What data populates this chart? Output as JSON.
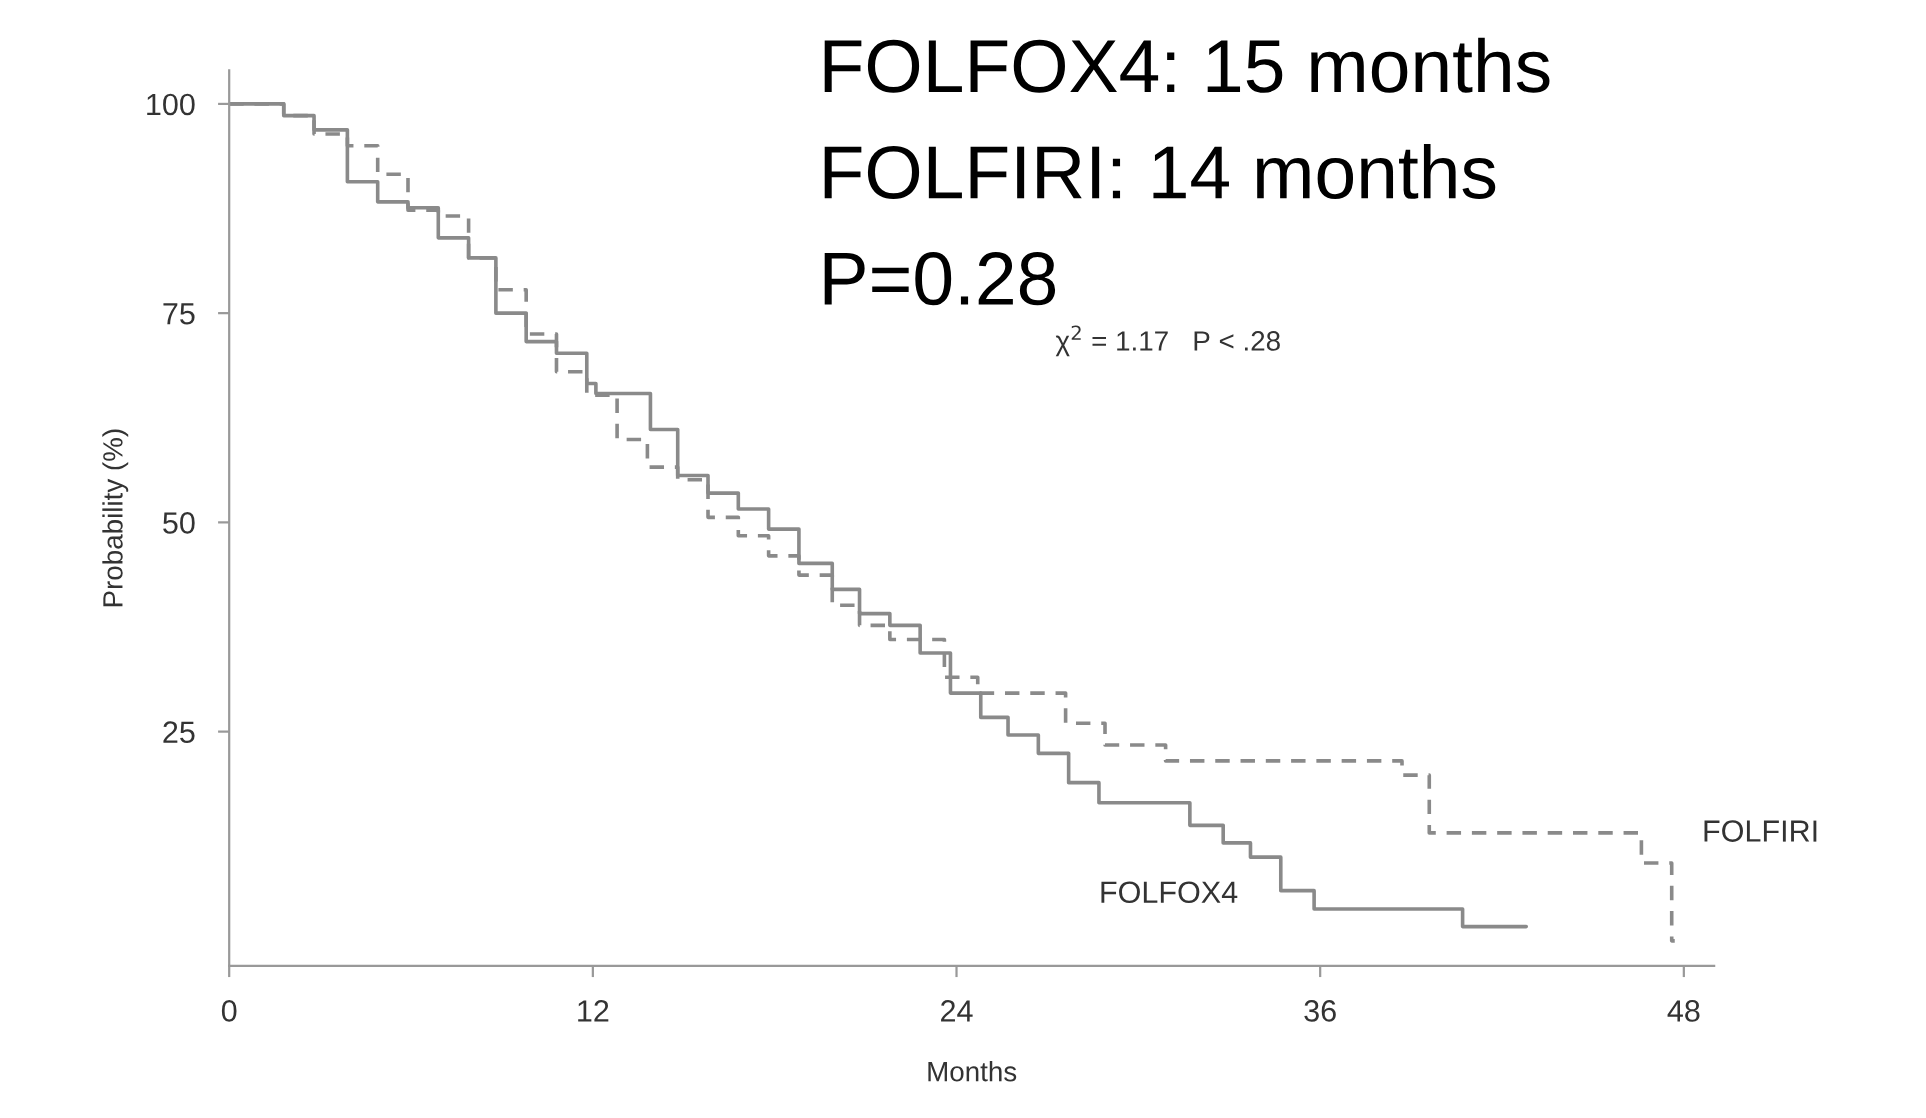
{
  "chart_data": {
    "type": "step",
    "xlabel": "Months",
    "ylabel": "Probability (%)",
    "xlim": [
      0,
      49
    ],
    "ylim": [
      -3,
      104
    ],
    "xticks": [
      0,
      12,
      24,
      36,
      48
    ],
    "yticks": [
      25,
      50,
      75,
      100
    ],
    "grid": false,
    "legend": false,
    "annotations": [
      "FOLFOX4: 15 months",
      "FOLFIRI: 14 months",
      "P=0.28",
      "χ$^{2}$ = 1.17   P < .28"
    ],
    "series": [
      {
        "name": "FOLFOX4",
        "color": "#8a8a8a",
        "line_style": "solid",
        "x": [
          0,
          1.8,
          2.8,
          3.9,
          4.9,
          5.9,
          6.9,
          7.9,
          8.8,
          9.8,
          10.8,
          11.8,
          12.1,
          13.9,
          14.8,
          15.8,
          16.8,
          17.8,
          18.8,
          19.9,
          20.8,
          21.8,
          22.8,
          23.8,
          24.8,
          25.7,
          26.7,
          27.7,
          28.7,
          31.7,
          32.8,
          33.7,
          34.7,
          35.8,
          40.7,
          42.8
        ],
        "values": [
          100,
          98.6,
          96.9,
          90.7,
          88.3,
          87.6,
          84,
          81.6,
          75,
          71.6,
          70.2,
          66.6,
          65.4,
          61.1,
          55.6,
          53.5,
          51.6,
          49.2,
          45.1,
          42,
          39.1,
          37.7,
          34.4,
          29.6,
          26.7,
          24.6,
          22.4,
          18.9,
          16.5,
          13.8,
          11.7,
          10,
          6,
          3.8,
          1.7,
          1.7
        ]
      },
      {
        "name": "FOLFIRI",
        "color": "#8a8a8a",
        "line_style": "dashed",
        "x": [
          0,
          1.8,
          2.8,
          3.9,
          4.9,
          5.9,
          6.9,
          7.9,
          8.8,
          9.8,
          10.8,
          11.8,
          12.8,
          13.8,
          14.8,
          15.8,
          16.8,
          17.8,
          18.8,
          19.9,
          20.8,
          21.8,
          23.6,
          24.7,
          27.6,
          28.9,
          30.9,
          38.7,
          39.6,
          46.6,
          47.6,
          47.7
        ],
        "values": [
          100,
          98.6,
          96.4,
          95,
          91.6,
          87.3,
          86.6,
          81.6,
          77.8,
          72.5,
          68,
          65.2,
          59.9,
          56.6,
          55.1,
          50.6,
          48.4,
          46,
          43.7,
          40.1,
          37.7,
          36,
          31.5,
          29.6,
          26,
          23.4,
          21.5,
          19.8,
          12.9,
          9.3,
          0,
          0
        ]
      }
    ]
  }
}
